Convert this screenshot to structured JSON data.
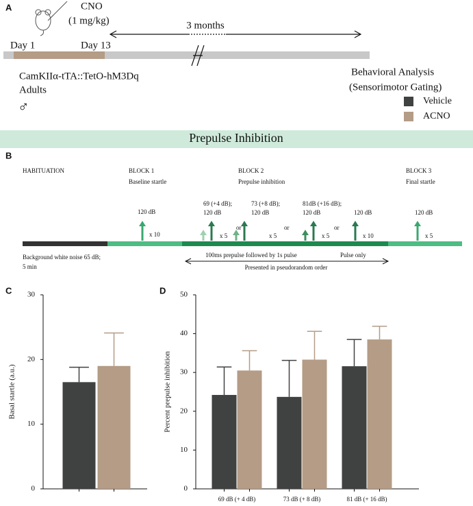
{
  "panel_a": {
    "label": "A",
    "drug": "CNO",
    "dose": "(1 mg/kg)",
    "interval": "3 months",
    "start": "Day 1",
    "end": "Day 13",
    "genotype": "CamKIIα-tTA::TetO-hM3Dq",
    "age": "Adults",
    "sex": "♂",
    "analysis": "Behavioral Analysis",
    "analysis_detail": "(Sensorimotor Gating)"
  },
  "banner": "Prepulse Inhibition",
  "panel_b": {
    "label": "B",
    "habituation": "HABITUATION",
    "blocks": [
      {
        "title": "BLOCK 1",
        "subtitle": "Baseline startle"
      },
      {
        "title": "BLOCK 2",
        "subtitle": "Prepulse inhibition"
      },
      {
        "title": "BLOCK 3",
        "subtitle": "Final startle"
      }
    ],
    "stimuli": [
      {
        "prepulse": null,
        "pulse": "120 dB",
        "repeat": "x 10"
      },
      {
        "prepulse": "69 (+4 dB);",
        "pulse": "120 dB",
        "repeat": "x 5"
      },
      {
        "prepulse": "73 (+8 dB);",
        "pulse": "120 dB",
        "repeat": "x 5"
      },
      {
        "prepulse": "81dB (+16 dB);",
        "pulse": "120 dB",
        "repeat": "x 5"
      },
      {
        "prepulse": null,
        "pulse": "120 dB",
        "repeat": "x 10"
      },
      {
        "prepulse": null,
        "pulse": "120 dB",
        "repeat": "x 5"
      }
    ],
    "separator": "or",
    "background": [
      "Background white noise 65 dB;",
      "5 min"
    ],
    "prepulse_note": "100ms prepulse followed by 1s pulse",
    "pulse_note": "Pulse only",
    "order_note": "Presented in pseudorandom order"
  },
  "chart_data": [
    {
      "type": "bar",
      "panel": "C",
      "y_label": "Basal startle (a.u.)",
      "categories": [
        null
      ],
      "series": [
        {
          "name": "Vehicle",
          "color": "#404241",
          "values": [
            16.5
          ],
          "errors": [
            2.3
          ]
        },
        {
          "name": "ACNO",
          "color": "#b49c86",
          "values": [
            19.0
          ],
          "errors": [
            5.1
          ]
        }
      ],
      "ylim": [
        0,
        30
      ],
      "yticks": [
        0,
        10,
        20,
        30
      ]
    },
    {
      "type": "bar",
      "panel": "D",
      "y_label": "Percent prepulse inhibition",
      "categories": [
        "69 dB (+ 4 dB)",
        "73 dB (+ 8 dB)",
        "81 dB (+ 16 dB)"
      ],
      "series": [
        {
          "name": "Vehicle",
          "color": "#404241",
          "values": [
            24.2,
            23.7,
            31.6
          ],
          "errors": [
            7.2,
            9.4,
            6.9
          ]
        },
        {
          "name": "ACNO",
          "color": "#b49c86",
          "values": [
            30.5,
            33.3,
            38.5
          ],
          "errors": [
            5.1,
            7.3,
            3.4
          ]
        }
      ],
      "ylim": [
        0,
        50
      ],
      "yticks": [
        0,
        10,
        20,
        30,
        40,
        50
      ]
    }
  ]
}
